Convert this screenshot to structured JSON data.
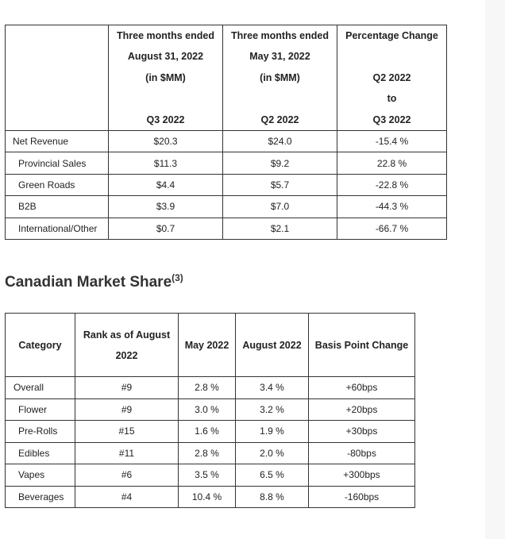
{
  "revenue_table": {
    "header": {
      "col_q3": [
        "Three months ended",
        "August 31, 2022",
        "(in $MM)",
        "",
        "Q3 2022"
      ],
      "col_q2": [
        "Three months ended",
        "May 31, 2022",
        "(in $MM)",
        "",
        "Q2 2022"
      ],
      "col_pct": [
        "Percentage Change",
        "",
        "Q2 2022",
        "to",
        "Q3 2022"
      ]
    },
    "rows": [
      {
        "label": "Net Revenue",
        "q3": "$20.3",
        "q2": "$24.0",
        "pct": "-15.4 %"
      },
      {
        "label": "Provincial Sales",
        "q3": "$11.3",
        "q2": "$9.2",
        "pct": "22.8 %"
      },
      {
        "label": "Green Roads",
        "q3": "$4.4",
        "q2": "$5.7",
        "pct": "-22.8 %"
      },
      {
        "label": "B2B",
        "q3": "$3.9",
        "q2": "$7.0",
        "pct": "-44.3 %"
      },
      {
        "label": "International/Other",
        "q3": "$0.7",
        "q2": "$2.1",
        "pct": "-66.7 %"
      }
    ]
  },
  "market_share": {
    "title": "Canadian Market Share",
    "title_sup": "(3)",
    "header": {
      "category": "Category",
      "rank": [
        "Rank as of August",
        "2022"
      ],
      "may": "May 2022",
      "aug": "August 2022",
      "bps": "Basis Point Change"
    },
    "rows": [
      {
        "category": "Overall",
        "rank": "#9",
        "may": "2.8 %",
        "aug": "3.4 %",
        "bps": "+60bps"
      },
      {
        "category": "Flower",
        "rank": "#9",
        "may": "3.0 %",
        "aug": "3.2 %",
        "bps": "+20bps"
      },
      {
        "category": "Pre-Rolls",
        "rank": "#15",
        "may": "1.6 %",
        "aug": "1.9 %",
        "bps": "+30bps"
      },
      {
        "category": "Edibles",
        "rank": "#11",
        "may": "2.8 %",
        "aug": "2.0 %",
        "bps": "-80bps"
      },
      {
        "category": "Vapes",
        "rank": "#6",
        "may": "3.5 %",
        "aug": "6.5 %",
        "bps": "+300bps"
      },
      {
        "category": "Beverages",
        "rank": "#4",
        "may": "10.4 %",
        "aug": "8.8 %",
        "bps": "-160bps"
      }
    ]
  }
}
